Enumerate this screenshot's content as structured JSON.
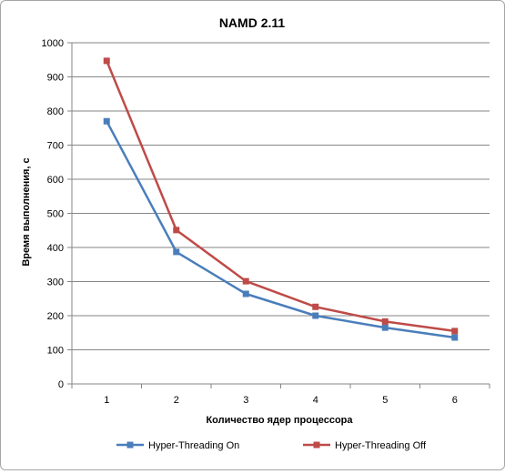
{
  "chart_data": {
    "type": "line",
    "title": "NAMD 2.11",
    "xlabel": "Количество  ядер процессора",
    "ylabel": "Время  выполнения, с",
    "x": [
      1,
      2,
      3,
      4,
      5,
      6
    ],
    "categories": [
      "1",
      "2",
      "3",
      "4",
      "5",
      "6"
    ],
    "ylim": [
      0,
      1000
    ],
    "yticks": [
      0,
      100,
      200,
      300,
      400,
      500,
      600,
      700,
      800,
      900,
      1000
    ],
    "ytick_labels": [
      "0",
      "100",
      "200",
      "300",
      "400",
      "500",
      "600",
      "700",
      "800",
      "900",
      "1000"
    ],
    "grid": "horizontal",
    "legend_position": "bottom",
    "series": [
      {
        "name": "Hyper-Threading On",
        "color": "#4a7ebb",
        "marker": "square",
        "values": [
          770,
          387,
          264,
          200,
          165,
          136
        ]
      },
      {
        "name": "Hyper-Threading Off",
        "color": "#be4b48",
        "marker": "square",
        "values": [
          947,
          451,
          301,
          226,
          183,
          155
        ]
      }
    ]
  }
}
